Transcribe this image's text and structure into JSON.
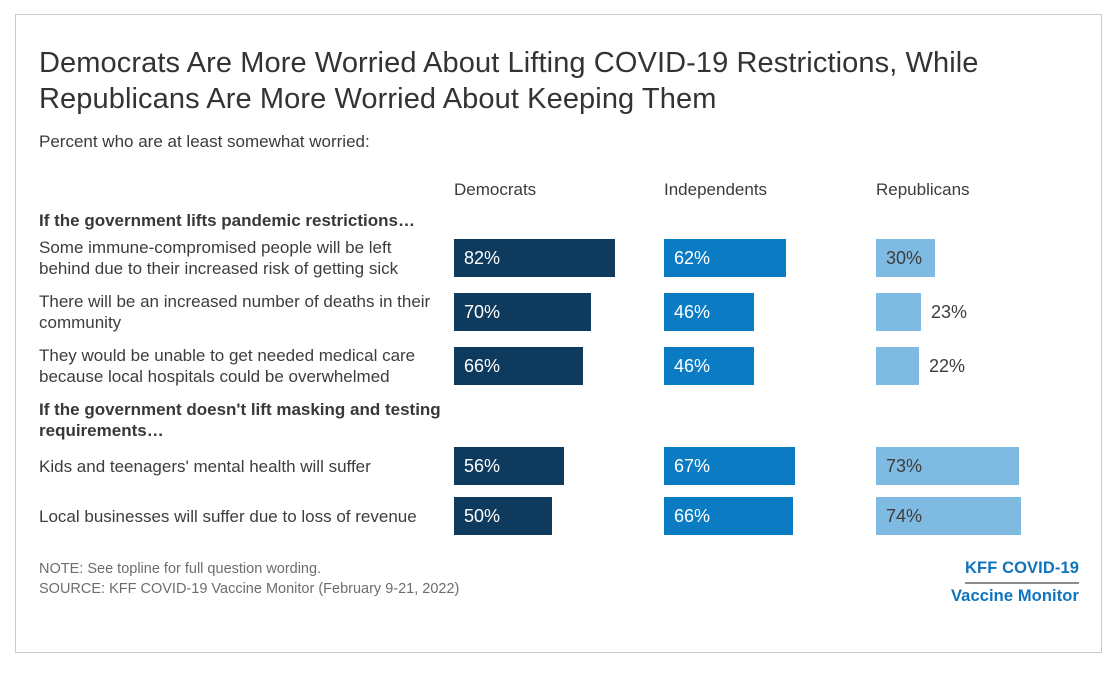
{
  "page": {
    "title": "Democrats Are More Worried About Lifting COVID-19 Restrictions, While Republicans Are More Worried About Keeping Them",
    "subtitle": "Percent who are at least somewhat worried:"
  },
  "columns": [
    "Democrats",
    "Independents",
    "Republicans"
  ],
  "sections": [
    {
      "header": "If the government lifts pandemic restrictions…",
      "rows": [
        {
          "label": "Some immune-compromised people will be left behind due to their increased risk of getting sick",
          "democrats": "82%",
          "independents": "62%",
          "republicans": "30%"
        },
        {
          "label": "There will be an increased number of deaths in their community",
          "democrats": "70%",
          "independents": "46%",
          "republicans": "23%"
        },
        {
          "label": "They would be unable to get needed medical care because local hospitals could be overwhelmed",
          "democrats": "66%",
          "independents": "46%",
          "republicans": "22%"
        }
      ]
    },
    {
      "header": "If the government doesn't lift masking and testing requirements…",
      "rows": [
        {
          "label": "Kids and teenagers' mental health will suffer",
          "democrats": "56%",
          "independents": "67%",
          "republicans": "73%"
        },
        {
          "label": "Local businesses will suffer due to loss of revenue",
          "democrats": "50%",
          "independents": "66%",
          "republicans": "74%"
        }
      ]
    }
  ],
  "footer": {
    "note": "NOTE: See topline for full question wording.",
    "source": "SOURCE: KFF COVID-19 Vaccine Monitor (February 9-21, 2022)"
  },
  "logo": {
    "line1": "KFF COVID-19",
    "line2": "Vaccine Monitor"
  },
  "colors": {
    "democrats_bar": "#0E3A5D",
    "independents_bar": "#0B7CC4",
    "republicans_bar": "#7FBAE2",
    "logo_blue": "#0F74BE"
  },
  "chart_data": {
    "type": "bar",
    "orientation": "horizontal",
    "title": "Democrats Are More Worried About Lifting COVID-19 Restrictions, While Republicans Are More Worried About Keeping Them",
    "subtitle": "Percent who are at least somewhat worried:",
    "unit": "percent",
    "xlim": [
      0,
      100
    ],
    "grid": false,
    "legend_position": "column-headers-top",
    "categories": [
      "Some immune-compromised people will be left behind due to their increased risk of getting sick",
      "There will be an increased number of deaths in their community",
      "They would be unable to get needed medical care because local hospitals could be overwhelmed",
      "Kids and teenagers' mental health will suffer",
      "Local businesses will suffer due to loss of revenue"
    ],
    "category_groups": [
      "If the government lifts pandemic restrictions…",
      "If the government lifts pandemic restrictions…",
      "If the government lifts pandemic restrictions…",
      "If the government doesn't lift masking and testing requirements…",
      "If the government doesn't lift masking and testing requirements…"
    ],
    "series": [
      {
        "name": "Democrats",
        "color": "#0E3A5D",
        "values": [
          82,
          70,
          66,
          56,
          50
        ]
      },
      {
        "name": "Independents",
        "color": "#0B7CC4",
        "values": [
          62,
          46,
          46,
          67,
          66
        ]
      },
      {
        "name": "Republicans",
        "color": "#7FBAE2",
        "values": [
          30,
          23,
          22,
          73,
          74
        ]
      }
    ]
  }
}
